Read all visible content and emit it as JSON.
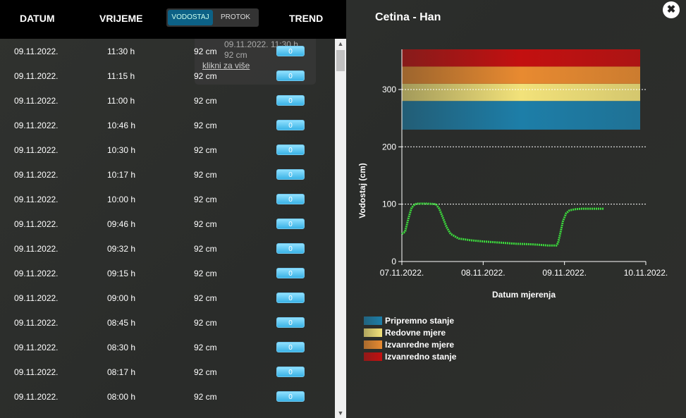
{
  "header": {
    "datum": "DATUM",
    "vrijeme": "VRIJEME",
    "vodostaj": "VODOSTAJ",
    "protok": "PROTOK",
    "trend": "TREND"
  },
  "tooltip": {
    "line1": "09.11.2022. 11:30 h",
    "line2": "92 cm",
    "link": "klikni za više"
  },
  "rows": [
    {
      "date": "09.11.2022.",
      "time": "11:30 h",
      "level": "92 cm",
      "trend": "0"
    },
    {
      "date": "09.11.2022.",
      "time": "11:15 h",
      "level": "92 cm",
      "trend": "0"
    },
    {
      "date": "09.11.2022.",
      "time": "11:00 h",
      "level": "92 cm",
      "trend": "0"
    },
    {
      "date": "09.11.2022.",
      "time": "10:46 h",
      "level": "92 cm",
      "trend": "0"
    },
    {
      "date": "09.11.2022.",
      "time": "10:30 h",
      "level": "92 cm",
      "trend": "0"
    },
    {
      "date": "09.11.2022.",
      "time": "10:17 h",
      "level": "92 cm",
      "trend": "0"
    },
    {
      "date": "09.11.2022.",
      "time": "10:00 h",
      "level": "92 cm",
      "trend": "0"
    },
    {
      "date": "09.11.2022.",
      "time": "09:46 h",
      "level": "92 cm",
      "trend": "0"
    },
    {
      "date": "09.11.2022.",
      "time": "09:32 h",
      "level": "92 cm",
      "trend": "0"
    },
    {
      "date": "09.11.2022.",
      "time": "09:15 h",
      "level": "92 cm",
      "trend": "0"
    },
    {
      "date": "09.11.2022.",
      "time": "09:00 h",
      "level": "92 cm",
      "trend": "0"
    },
    {
      "date": "09.11.2022.",
      "time": "08:45 h",
      "level": "92 cm",
      "trend": "0"
    },
    {
      "date": "09.11.2022.",
      "time": "08:30 h",
      "level": "92 cm",
      "trend": "0"
    },
    {
      "date": "09.11.2022.",
      "time": "08:17 h",
      "level": "92 cm",
      "trend": "0"
    },
    {
      "date": "09.11.2022.",
      "time": "08:00 h",
      "level": "92 cm",
      "trend": "0"
    }
  ],
  "panel": {
    "title": "Cetina - Han",
    "close": "✖"
  },
  "chart_data": {
    "type": "line",
    "ylabel": "Vodostaj (cm)",
    "xlabel": "Datum mjerenja",
    "ylim": [
      0,
      370
    ],
    "yticks": [
      0,
      100,
      200,
      300
    ],
    "xticks": [
      "07.11.2022.",
      "08.11.2022.",
      "09.11.2022.",
      "10.11.2022."
    ],
    "xlim_days": [
      0,
      3
    ],
    "series": [
      {
        "name": "Vodostaj",
        "color": "#3ddc3d",
        "x_days": [
          0,
          0.04,
          0.08,
          0.12,
          0.16,
          0.2,
          0.3,
          0.42,
          0.46,
          0.5,
          0.55,
          0.6,
          0.7,
          0.85,
          1.0,
          1.2,
          1.4,
          1.6,
          1.8,
          1.9,
          1.92,
          1.95,
          1.98,
          2.02,
          2.06,
          2.12,
          2.2,
          2.35,
          2.48
        ],
        "values": [
          48,
          52,
          75,
          94,
          100,
          101,
          101,
          100,
          92,
          78,
          60,
          48,
          40,
          37,
          35,
          33,
          31,
          30,
          28,
          28,
          32,
          50,
          70,
          84,
          89,
          91,
          92,
          92,
          92
        ]
      }
    ],
    "bands": [
      {
        "name": "Pripremno stanje",
        "from": 230,
        "to": 280,
        "color": "#1d7ea8"
      },
      {
        "name": "Redovne mjere",
        "from": 280,
        "to": 310,
        "color": "#f2e27a"
      },
      {
        "name": "Izvanredne mjere",
        "from": 310,
        "to": 340,
        "color": "#e88a30"
      },
      {
        "name": "Izvanredno stanje",
        "from": 340,
        "to": 370,
        "color": "#c31010"
      }
    ]
  }
}
